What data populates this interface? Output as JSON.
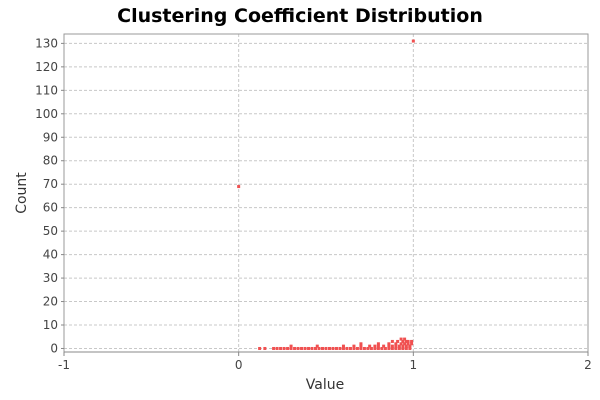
{
  "chart_data": {
    "type": "scatter",
    "title": "Clustering Coefficient Distribution",
    "xlabel": "Value",
    "ylabel": "Count",
    "xlim": [
      -1,
      2
    ],
    "ylim": [
      -1.5,
      134
    ],
    "xticks": [
      -1,
      0,
      1,
      2
    ],
    "yticks": [
      0,
      10,
      20,
      30,
      40,
      50,
      60,
      70,
      80,
      90,
      100,
      110,
      120,
      130
    ],
    "grid": true,
    "point_color": "#f05050",
    "points": [
      {
        "x": 0.0,
        "y": 69
      },
      {
        "x": 1.0,
        "y": 131
      },
      {
        "x": 0.12,
        "y": 0
      },
      {
        "x": 0.15,
        "y": 0
      },
      {
        "x": 0.2,
        "y": 0
      },
      {
        "x": 0.22,
        "y": 0
      },
      {
        "x": 0.24,
        "y": 0
      },
      {
        "x": 0.26,
        "y": 0
      },
      {
        "x": 0.28,
        "y": 0
      },
      {
        "x": 0.3,
        "y": 0
      },
      {
        "x": 0.32,
        "y": 0
      },
      {
        "x": 0.34,
        "y": 0
      },
      {
        "x": 0.36,
        "y": 0
      },
      {
        "x": 0.38,
        "y": 0
      },
      {
        "x": 0.4,
        "y": 0
      },
      {
        "x": 0.42,
        "y": 0
      },
      {
        "x": 0.44,
        "y": 0
      },
      {
        "x": 0.46,
        "y": 0
      },
      {
        "x": 0.48,
        "y": 0
      },
      {
        "x": 0.5,
        "y": 0
      },
      {
        "x": 0.52,
        "y": 0
      },
      {
        "x": 0.54,
        "y": 0
      },
      {
        "x": 0.56,
        "y": 0
      },
      {
        "x": 0.58,
        "y": 0
      },
      {
        "x": 0.6,
        "y": 0
      },
      {
        "x": 0.62,
        "y": 0
      },
      {
        "x": 0.64,
        "y": 0
      },
      {
        "x": 0.66,
        "y": 0
      },
      {
        "x": 0.68,
        "y": 0
      },
      {
        "x": 0.7,
        "y": 0
      },
      {
        "x": 0.72,
        "y": 0
      },
      {
        "x": 0.74,
        "y": 0
      },
      {
        "x": 0.76,
        "y": 0
      },
      {
        "x": 0.78,
        "y": 0
      },
      {
        "x": 0.8,
        "y": 0
      },
      {
        "x": 0.82,
        "y": 0
      },
      {
        "x": 0.84,
        "y": 0
      },
      {
        "x": 0.86,
        "y": 0
      },
      {
        "x": 0.88,
        "y": 0
      },
      {
        "x": 0.9,
        "y": 0
      },
      {
        "x": 0.92,
        "y": 0
      },
      {
        "x": 0.94,
        "y": 0
      },
      {
        "x": 0.96,
        "y": 0
      },
      {
        "x": 0.98,
        "y": 0
      },
      {
        "x": 0.3,
        "y": 1
      },
      {
        "x": 0.45,
        "y": 1
      },
      {
        "x": 0.6,
        "y": 1
      },
      {
        "x": 0.66,
        "y": 1
      },
      {
        "x": 0.7,
        "y": 1
      },
      {
        "x": 0.75,
        "y": 1
      },
      {
        "x": 0.78,
        "y": 1
      },
      {
        "x": 0.8,
        "y": 1
      },
      {
        "x": 0.83,
        "y": 1
      },
      {
        "x": 0.86,
        "y": 1
      },
      {
        "x": 0.88,
        "y": 1
      },
      {
        "x": 0.9,
        "y": 1
      },
      {
        "x": 0.92,
        "y": 1
      },
      {
        "x": 0.94,
        "y": 1
      },
      {
        "x": 0.96,
        "y": 1
      },
      {
        "x": 0.98,
        "y": 1
      },
      {
        "x": 0.7,
        "y": 2
      },
      {
        "x": 0.8,
        "y": 2
      },
      {
        "x": 0.86,
        "y": 2
      },
      {
        "x": 0.9,
        "y": 2
      },
      {
        "x": 0.93,
        "y": 2
      },
      {
        "x": 0.95,
        "y": 2
      },
      {
        "x": 0.97,
        "y": 2
      },
      {
        "x": 0.99,
        "y": 2
      },
      {
        "x": 0.88,
        "y": 3
      },
      {
        "x": 0.91,
        "y": 3
      },
      {
        "x": 0.94,
        "y": 3
      },
      {
        "x": 0.97,
        "y": 3
      },
      {
        "x": 0.99,
        "y": 3
      },
      {
        "x": 0.93,
        "y": 4
      },
      {
        "x": 0.95,
        "y": 4
      },
      {
        "x": 0.96,
        "y": 3
      },
      {
        "x": 0.98,
        "y": 1
      }
    ]
  }
}
